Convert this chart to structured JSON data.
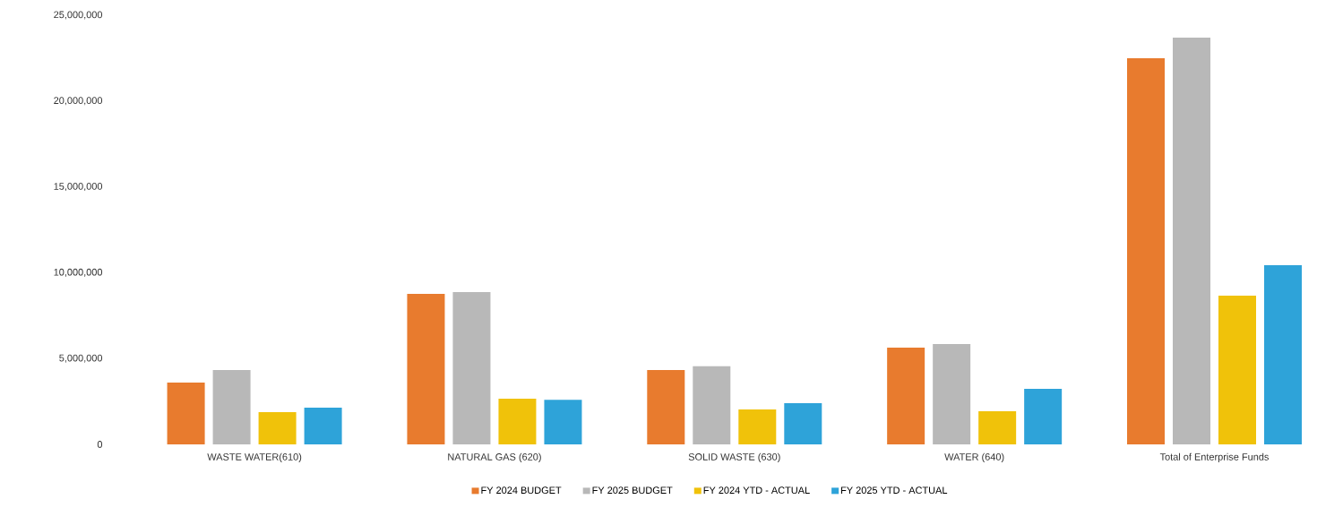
{
  "chart_data": {
    "type": "bar",
    "categories": [
      "WASTE WATER(610)",
      "NATURAL GAS (620)",
      "SOLID WASTE (630)",
      "WATER (640)",
      "Total of Enterprise Funds"
    ],
    "series": [
      {
        "name": "FY 2024  BUDGET",
        "color": "#e87b2e",
        "values": [
          3600000,
          8770000,
          4330000,
          5640000,
          22500000
        ]
      },
      {
        "name": "FY 2025  BUDGET",
        "color": "#b8b8b8",
        "values": [
          4330000,
          8870000,
          4550000,
          5850000,
          23700000
        ]
      },
      {
        "name": "FY 2024 YTD - ACTUAL",
        "color": "#f0c20a",
        "values": [
          1880000,
          2660000,
          2040000,
          1930000,
          8660000
        ]
      },
      {
        "name": "FY 2025 YTD - ACTUAL",
        "color": "#2ea3d9",
        "values": [
          2140000,
          2600000,
          2400000,
          3240000,
          10440000
        ]
      }
    ],
    "ylim": [
      0,
      25000000
    ],
    "yticks": [
      {
        "value": 0,
        "label": "0"
      },
      {
        "value": 5000000,
        "label": "5,000,000"
      },
      {
        "value": 10000000,
        "label": "10,000,000"
      },
      {
        "value": 15000000,
        "label": "15,000,000"
      },
      {
        "value": 20000000,
        "label": "20,000,000"
      },
      {
        "value": 25000000,
        "label": "25,000,000"
      }
    ],
    "grid": false,
    "legend": "bottom"
  }
}
